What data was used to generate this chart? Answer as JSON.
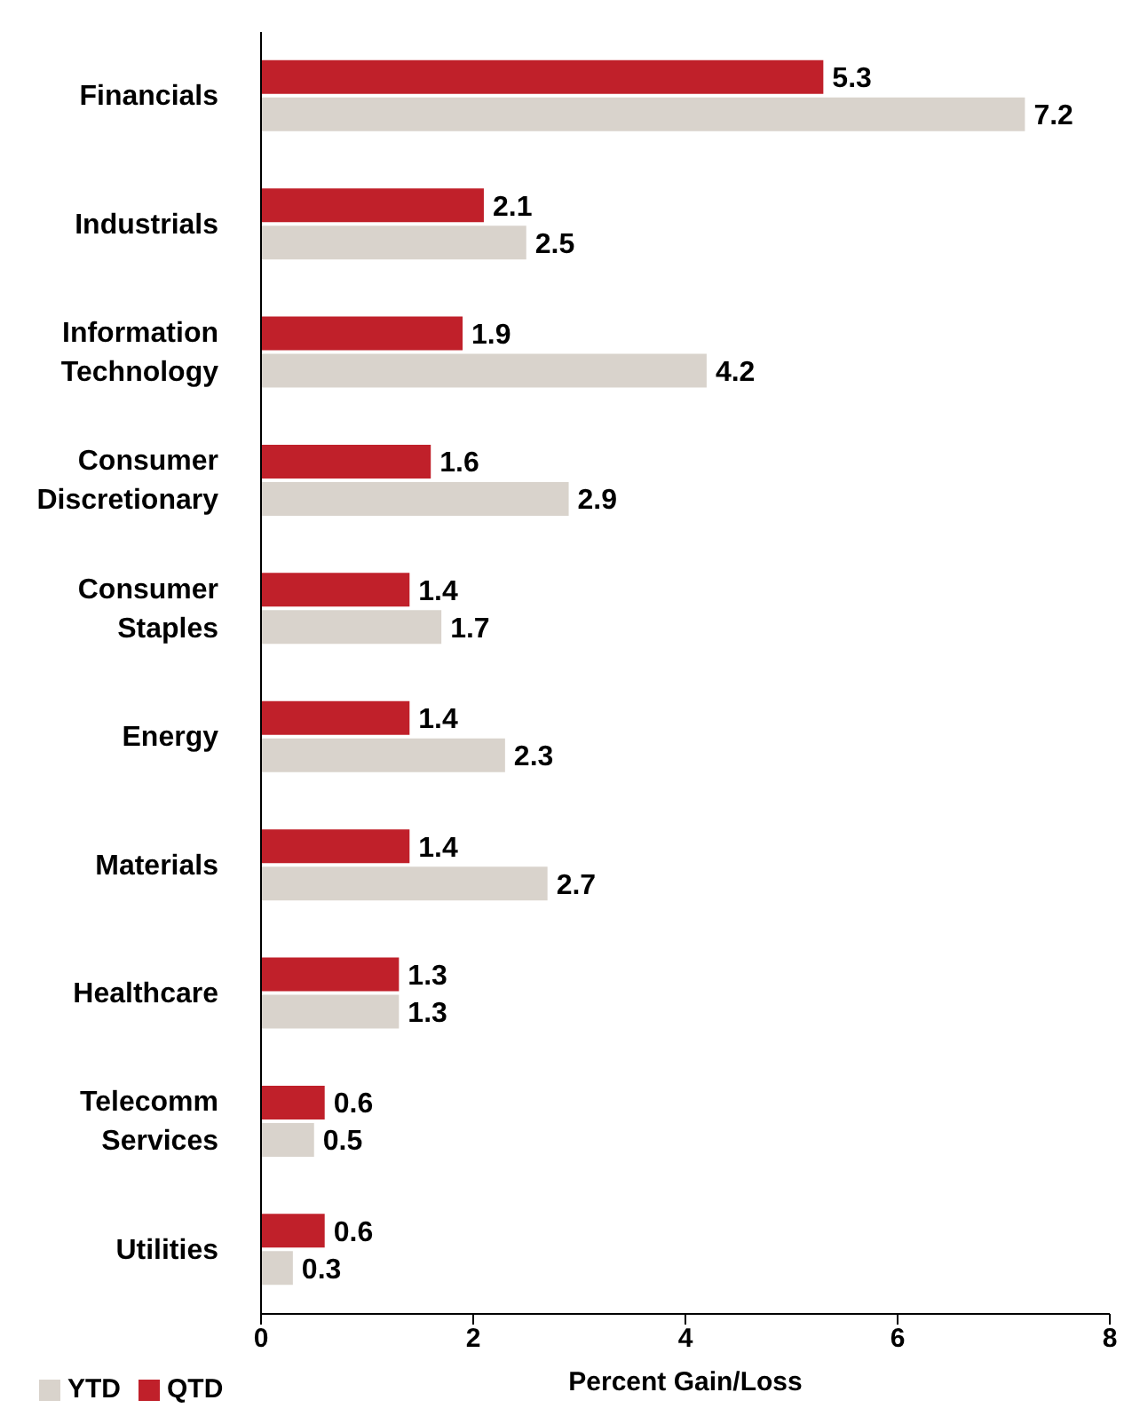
{
  "chart_data": {
    "type": "bar",
    "orientation": "horizontal",
    "xlabel": "Percent Gain/Loss",
    "categories": [
      "Financials",
      "Industrials",
      "Information Technology",
      "Consumer Discretionary",
      "Consumer Staples",
      "Energy",
      "Materials",
      "Healthcare",
      "Telecomm Services",
      "Utilities"
    ],
    "series": [
      {
        "name": "YTD",
        "color": "#d9d3cc",
        "values": [
          7.2,
          2.5,
          4.2,
          2.9,
          1.7,
          2.3,
          2.7,
          1.3,
          0.5,
          0.3
        ]
      },
      {
        "name": "QTD",
        "color": "#c0202a",
        "values": [
          5.3,
          2.1,
          1.9,
          1.6,
          1.4,
          1.4,
          1.4,
          1.3,
          0.6,
          0.6
        ]
      }
    ],
    "xlim": [
      0,
      8
    ],
    "xticks": [
      0,
      2,
      4,
      6,
      8
    ],
    "data_labels": true,
    "legend": "bottom left",
    "grid": false
  }
}
